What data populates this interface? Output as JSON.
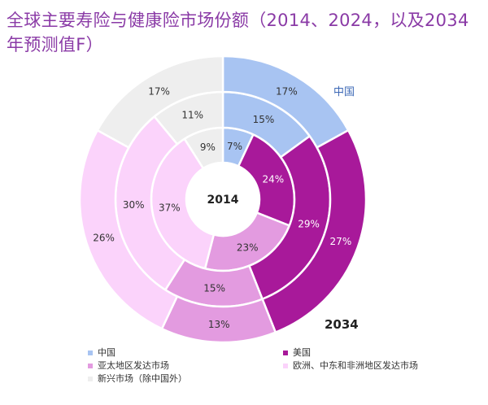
{
  "title": "全球主要寿险与健康险市场份额（2014、2024，以及2034年预测值F）",
  "callout_label": "中国",
  "chart_data": {
    "type": "pie",
    "subtype": "multi-ring donut",
    "rings": [
      "2014",
      "2024",
      "2034"
    ],
    "center_label": "2014",
    "outer_label": "2034",
    "series": [
      {
        "name": "中国",
        "color": "#a8c4f2",
        "values": [
          7,
          15,
          17
        ]
      },
      {
        "name": "美国",
        "color": "#a8199a",
        "values": [
          24,
          29,
          27
        ]
      },
      {
        "name": "亚太地区发达市场",
        "color": "#e39be0",
        "values": [
          23,
          15,
          13
        ]
      },
      {
        "name": "欧洲、中东和非洲地区发达市场",
        "color": "#fbd3fb",
        "values": [
          37,
          30,
          26
        ]
      },
      {
        "name": "新兴市场（除中国外）",
        "color": "#eeeeee",
        "values": [
          9,
          11,
          17
        ]
      }
    ],
    "value_suffix": "%"
  },
  "legend": [
    {
      "label": "中国",
      "color": "#a8c4f2"
    },
    {
      "label": "美国",
      "color": "#a8199a"
    },
    {
      "label": "亚太地区发达市场",
      "color": "#e39be0"
    },
    {
      "label": "欧洲、中东和非洲地区发达市场",
      "color": "#fbd3fb"
    },
    {
      "label": "新兴市场（除中国外）",
      "color": "#eeeeee"
    }
  ]
}
